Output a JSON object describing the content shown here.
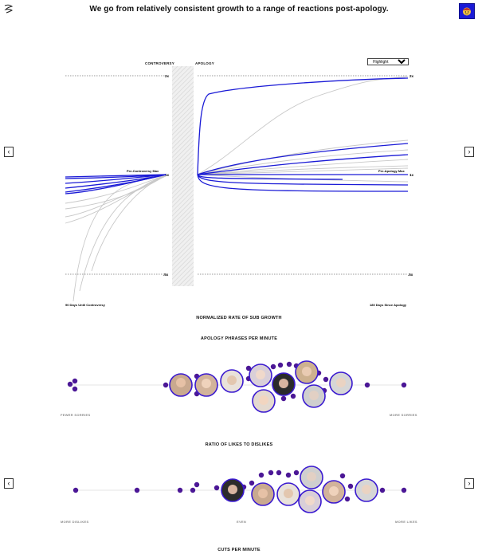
{
  "header": {
    "headline": "We go from relatively consistent growth to a range of reactions post-apology.",
    "logo_icon": "sketch-logo-icon",
    "avatar_icon": "emoji-avatar-icon",
    "avatar_color": "#1a1ad6"
  },
  "nav": {
    "prev_symbol": "‹",
    "next_symbol": "›"
  },
  "growth_chart": {
    "label_controversy": "CONTROVERSY",
    "label_apology": "APOLOGY",
    "highlight_select": {
      "selected": "Highlight",
      "options": [
        "Highlight"
      ]
    },
    "tick_2x": "2x",
    "tick_1x": "1x",
    "tick_half": ".5x",
    "label_pre_controversy_max": "Pre-Controversy Max",
    "label_pre_apology_max": "Pre-Apology Max",
    "label_start": "90 Days Until Controversy",
    "label_end": "180 Days Since Apology",
    "title": "NORMALIZED RATE OF SUB GROWTH",
    "highlight_color": "#1a1ad6",
    "other_color": "#c8c8c8"
  },
  "apology_phrases": {
    "title": "APOLOGY PHRASES PER MINUTE",
    "label_left": "FEWER SORRIES",
    "label_right": "MORE SORRIES",
    "dot_color": "#4b1796"
  },
  "likes_dislikes": {
    "title": "RATIO OF LIKES TO DISLIKES",
    "label_left": "MORE DISLIKES",
    "label_center": "EVEN",
    "label_right": "MORE LIKES",
    "dot_color": "#4b1796"
  },
  "cuts": {
    "title": "CUTS PER MINUTE"
  }
}
